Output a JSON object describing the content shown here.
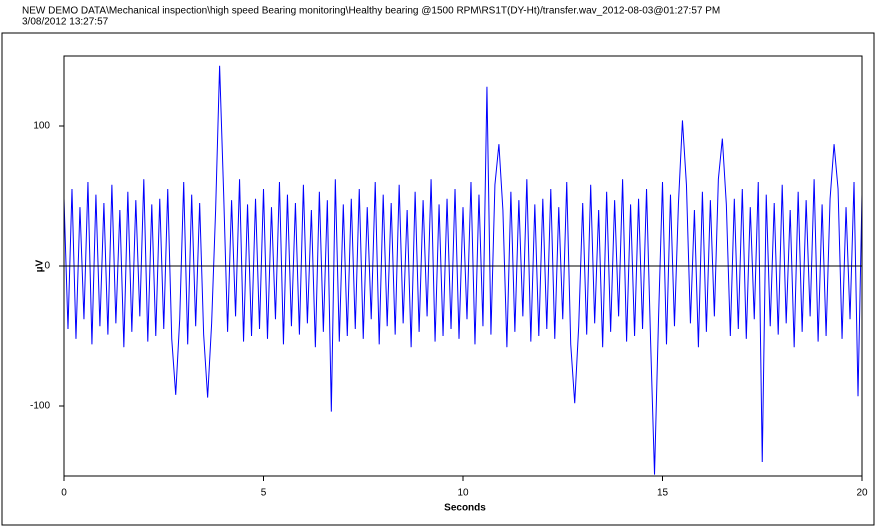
{
  "chart_data": {
    "type": "line",
    "title": "NEW DEMO DATA\\Mechanical inspection\\high speed Bearing monitoring\\Healthy bearing @1500 RPM\\RS1T(DY-Ht)/transfer.wav_2012-08-03@01:27:57 PM",
    "subtitle": "3/08/2012 13:27:57",
    "x_label": "Seconds",
    "y_label": "µV",
    "color": "#0000ff",
    "zero_line": true,
    "xlim": [
      0,
      20
    ],
    "xticks": [
      0,
      5,
      10,
      15,
      20
    ],
    "ylim": [
      -150,
      150
    ],
    "yticks": [
      -100,
      0,
      100
    ],
    "x": [
      0,
      0.1,
      0.2,
      0.3,
      0.4,
      0.5,
      0.6,
      0.7,
      0.8,
      0.9,
      1,
      1.1,
      1.2,
      1.3,
      1.4,
      1.5,
      1.6,
      1.7,
      1.8,
      1.9,
      2,
      2.1,
      2.2,
      2.3,
      2.4,
      2.5,
      2.6,
      2.7,
      2.8,
      2.9,
      3,
      3.1,
      3.2,
      3.3,
      3.4,
      3.5,
      3.6,
      3.7,
      3.8,
      3.9,
      4,
      4.1,
      4.2,
      4.3,
      4.4,
      4.5,
      4.6,
      4.7,
      4.8,
      4.9,
      5,
      5.1,
      5.2,
      5.3,
      5.4,
      5.5,
      5.6,
      5.7,
      5.8,
      5.9,
      6,
      6.1,
      6.2,
      6.3,
      6.4,
      6.5,
      6.6,
      6.7,
      6.8,
      6.9,
      7,
      7.1,
      7.2,
      7.3,
      7.4,
      7.5,
      7.6,
      7.7,
      7.8,
      7.9,
      8,
      8.1,
      8.2,
      8.3,
      8.4,
      8.5,
      8.6,
      8.7,
      8.8,
      8.9,
      9,
      9.1,
      9.2,
      9.3,
      9.4,
      9.5,
      9.6,
      9.7,
      9.8,
      9.9,
      10,
      10.1,
      10.2,
      10.3,
      10.4,
      10.5,
      10.6,
      10.7,
      10.8,
      10.9,
      11,
      11.1,
      11.2,
      11.3,
      11.4,
      11.5,
      11.6,
      11.7,
      11.8,
      11.9,
      12,
      12.1,
      12.2,
      12.3,
      12.4,
      12.5,
      12.6,
      12.7,
      12.8,
      12.9,
      13,
      13.1,
      13.2,
      13.3,
      13.4,
      13.5,
      13.6,
      13.7,
      13.8,
      13.9,
      14,
      14.1,
      14.2,
      14.3,
      14.4,
      14.5,
      14.6,
      14.7,
      14.8,
      14.9,
      15,
      15.1,
      15.2,
      15.3,
      15.4,
      15.5,
      15.6,
      15.7,
      15.8,
      15.9,
      16,
      16.1,
      16.2,
      16.3,
      16.4,
      16.5,
      16.6,
      16.7,
      16.8,
      16.9,
      17,
      17.1,
      17.2,
      17.3,
      17.4,
      17.5,
      17.6,
      17.7,
      17.8,
      17.9,
      18,
      18.1,
      18.2,
      18.3,
      18.4,
      18.5,
      18.6,
      18.7,
      18.8,
      18.9,
      19,
      19.1,
      19.2,
      19.3,
      19.4,
      19.5,
      19.6,
      19.7,
      19.8,
      19.9,
      20
    ],
    "values": [
      48,
      -45,
      55,
      -52,
      42,
      -38,
      60,
      -56,
      51,
      -43,
      45,
      -49,
      58,
      -41,
      40,
      -58,
      53,
      -47,
      47,
      -36,
      62,
      -54,
      44,
      -50,
      48,
      -45,
      55,
      -52,
      -92,
      -38,
      60,
      -56,
      51,
      -43,
      45,
      -49,
      -94,
      -41,
      40,
      143,
      53,
      -47,
      47,
      -36,
      62,
      -54,
      44,
      -50,
      48,
      -45,
      55,
      -52,
      42,
      -38,
      60,
      -56,
      51,
      -43,
      45,
      -49,
      58,
      -41,
      40,
      -58,
      53,
      -47,
      47,
      -104,
      62,
      -54,
      44,
      -50,
      48,
      -45,
      55,
      -52,
      42,
      -38,
      60,
      -56,
      51,
      -43,
      45,
      -49,
      58,
      -41,
      40,
      -58,
      53,
      -47,
      47,
      -36,
      62,
      -54,
      44,
      -50,
      48,
      -45,
      55,
      -52,
      42,
      -38,
      60,
      -56,
      51,
      -43,
      128,
      -49,
      58,
      87,
      40,
      -58,
      53,
      -47,
      47,
      -36,
      62,
      -54,
      44,
      -50,
      48,
      -45,
      55,
      -52,
      42,
      -38,
      60,
      -56,
      -98,
      -43,
      45,
      -49,
      58,
      -41,
      40,
      -58,
      53,
      -47,
      47,
      -36,
      62,
      -54,
      44,
      -50,
      48,
      -45,
      55,
      -52,
      -149,
      -38,
      60,
      -56,
      51,
      -43,
      45,
      104,
      58,
      -41,
      40,
      -58,
      53,
      -47,
      47,
      -36,
      62,
      91,
      44,
      -50,
      48,
      -45,
      55,
      -52,
      42,
      -38,
      60,
      -140,
      51,
      -43,
      45,
      -49,
      58,
      -41,
      40,
      -58,
      53,
      -47,
      47,
      -36,
      62,
      -54,
      44,
      -50,
      48,
      87,
      55,
      -52,
      42,
      -38,
      60,
      -93,
      51
    ]
  }
}
